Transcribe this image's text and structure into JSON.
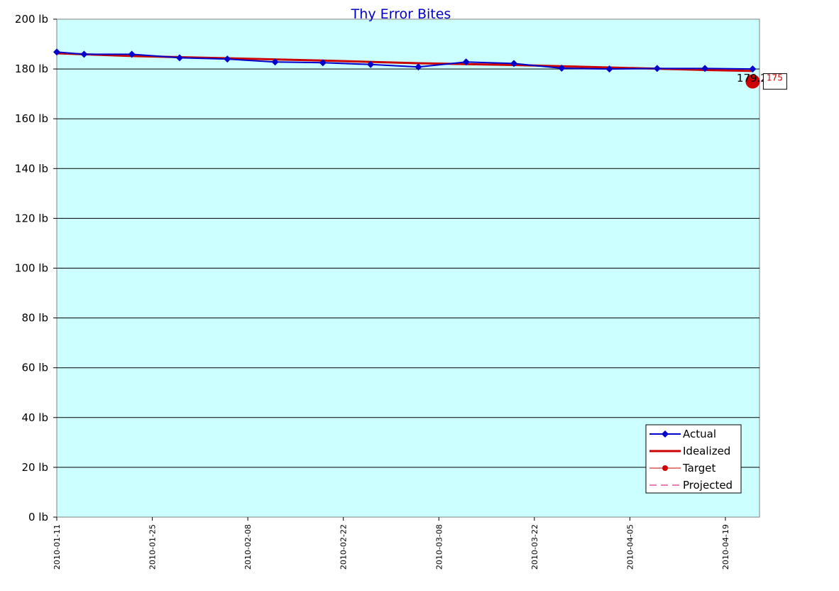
{
  "chart_data": {
    "type": "line",
    "title": "Thy Error Bites",
    "xlabel": "",
    "ylabel": "",
    "y_unit": "lb",
    "ylim": [
      0,
      200
    ],
    "y_ticks": [
      0,
      20,
      40,
      60,
      80,
      100,
      120,
      140,
      160,
      180,
      200
    ],
    "y_tick_labels": [
      "0 lb",
      "20 lb",
      "40 lb",
      "60 lb",
      "80 lb",
      "100 lb",
      "120 lb",
      "140 lb",
      "160 lb",
      "180 lb",
      "200 lb"
    ],
    "xlim": [
      "2010-01-11",
      "2010-04-24"
    ],
    "x_ticks": [
      "2010-01-11",
      "2010-01-25",
      "2010-02-08",
      "2010-02-22",
      "2010-03-08",
      "2010-03-22",
      "2010-04-05",
      "2010-04-19"
    ],
    "grid": "horizontal",
    "plot_background": "#ccffff",
    "legend_position": "bottom-right",
    "series": [
      {
        "name": "Actual",
        "color": "#0000cc",
        "marker": "diamond",
        "points": [
          [
            "2010-01-11",
            186.8
          ],
          [
            "2010-01-15",
            185.9
          ],
          [
            "2010-01-22",
            185.9
          ],
          [
            "2010-01-29",
            184.5
          ],
          [
            "2010-02-05",
            184.0
          ],
          [
            "2010-02-12",
            182.8
          ],
          [
            "2010-02-19",
            182.5
          ],
          [
            "2010-02-26",
            181.8
          ],
          [
            "2010-03-05",
            180.8
          ],
          [
            "2010-03-12",
            182.8
          ],
          [
            "2010-03-19",
            182.2
          ],
          [
            "2010-03-26",
            180.3
          ],
          [
            "2010-04-02",
            180.0
          ],
          [
            "2010-04-09",
            180.2
          ],
          [
            "2010-04-16",
            180.2
          ],
          [
            "2010-04-23",
            180.0
          ]
        ]
      },
      {
        "name": "Idealized",
        "color": "#cc0000",
        "marker": "none",
        "points": [
          [
            "2010-01-11",
            186.3
          ],
          [
            "2010-01-22",
            185.2
          ],
          [
            "2010-02-05",
            184.3
          ],
          [
            "2010-02-19",
            183.4
          ],
          [
            "2010-03-05",
            182.3
          ],
          [
            "2010-03-19",
            181.6
          ],
          [
            "2010-04-02",
            180.6
          ],
          [
            "2010-04-16",
            179.6
          ],
          [
            "2010-04-23",
            179.2
          ]
        ]
      },
      {
        "name": "Target",
        "color": "#cc0000",
        "marker": "circle",
        "points": [
          [
            "2010-04-23",
            175
          ]
        ]
      },
      {
        "name": "Projected",
        "color": "#cc0066",
        "marker": "none",
        "line_style": "dashed",
        "points": []
      }
    ],
    "annotations": [
      {
        "text": "179.2",
        "x": "2010-04-23",
        "y": 179.2,
        "color": "#000000"
      },
      {
        "text": "175",
        "x": "2010-04-23",
        "y": 175,
        "color": "#cc0000",
        "boxed": true
      }
    ]
  }
}
